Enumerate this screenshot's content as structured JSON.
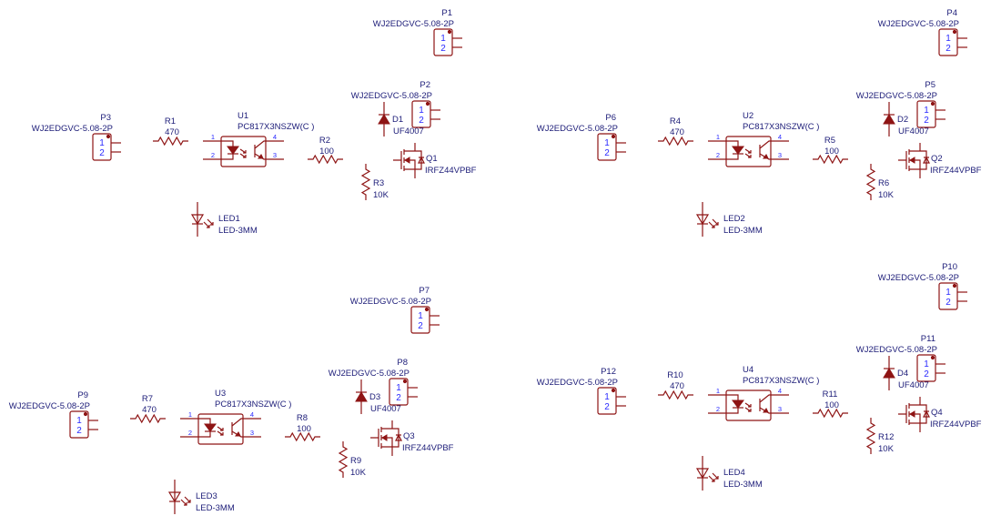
{
  "colors": {
    "wire": "#8e1414",
    "label": "#1c1c78",
    "pin_number": "#2a2aff",
    "background": "#ffffff"
  },
  "blocks": [
    {
      "connectors": [
        {
          "ref": "P1",
          "part": "WJ2EDGVC-5.08-2P",
          "pins": [
            "1",
            "2"
          ]
        },
        {
          "ref": "P2",
          "part": "WJ2EDGVC-5.08-2P",
          "pins": [
            "1",
            "2"
          ]
        },
        {
          "ref": "P3",
          "part": "WJ2EDGVC-5.08-2P",
          "pins": [
            "1",
            "2"
          ]
        }
      ],
      "r_in": {
        "ref": "R1",
        "value": "470"
      },
      "opto": {
        "ref": "U1",
        "part": "PC817X3NSZW(C )",
        "pins": [
          "1",
          "2",
          "4",
          "3"
        ]
      },
      "r_gate": {
        "ref": "R2",
        "value": "100"
      },
      "diode": {
        "ref": "D1",
        "part": "UF4007"
      },
      "mosfet": {
        "ref": "Q1",
        "part": "IRFZ44VPBF"
      },
      "r_pull": {
        "ref": "R3",
        "value": "10K"
      },
      "led": {
        "ref": "LED1",
        "part": "LED-3MM"
      }
    },
    {
      "connectors": [
        {
          "ref": "P4",
          "part": "WJ2EDGVC-5.08-2P",
          "pins": [
            "1",
            "2"
          ]
        },
        {
          "ref": "P5",
          "part": "WJ2EDGVC-5.08-2P",
          "pins": [
            "1",
            "2"
          ]
        },
        {
          "ref": "P6",
          "part": "WJ2EDGVC-5.08-2P",
          "pins": [
            "1",
            "2"
          ]
        }
      ],
      "r_in": {
        "ref": "R4",
        "value": "470"
      },
      "opto": {
        "ref": "U2",
        "part": "PC817X3NSZW(C )",
        "pins": [
          "1",
          "2",
          "4",
          "3"
        ]
      },
      "r_gate": {
        "ref": "R5",
        "value": "100"
      },
      "diode": {
        "ref": "D2",
        "part": "UF4007"
      },
      "mosfet": {
        "ref": "Q2",
        "part": "IRFZ44VPBF"
      },
      "r_pull": {
        "ref": "R6",
        "value": "10K"
      },
      "led": {
        "ref": "LED2",
        "part": "LED-3MM"
      }
    },
    {
      "connectors": [
        {
          "ref": "P7",
          "part": "WJ2EDGVC-5.08-2P",
          "pins": [
            "1",
            "2"
          ]
        },
        {
          "ref": "P8",
          "part": "WJ2EDGVC-5.08-2P",
          "pins": [
            "1",
            "2"
          ]
        },
        {
          "ref": "P9",
          "part": "WJ2EDGVC-5.08-2P",
          "pins": [
            "1",
            "2"
          ]
        }
      ],
      "r_in": {
        "ref": "R7",
        "value": "470"
      },
      "opto": {
        "ref": "U3",
        "part": "PC817X3NSZW(C )",
        "pins": [
          "1",
          "2",
          "4",
          "3"
        ]
      },
      "r_gate": {
        "ref": "R8",
        "value": "100"
      },
      "diode": {
        "ref": "D3",
        "part": "UF4007"
      },
      "mosfet": {
        "ref": "Q3",
        "part": "IRFZ44VPBF"
      },
      "r_pull": {
        "ref": "R9",
        "value": "10K"
      },
      "led": {
        "ref": "LED3",
        "part": "LED-3MM"
      }
    },
    {
      "connectors": [
        {
          "ref": "P10",
          "part": "WJ2EDGVC-5.08-2P",
          "pins": [
            "1",
            "2"
          ]
        },
        {
          "ref": "P11",
          "part": "WJ2EDGVC-5.08-2P",
          "pins": [
            "1",
            "2"
          ]
        },
        {
          "ref": "P12",
          "part": "WJ2EDGVC-5.08-2P",
          "pins": [
            "1",
            "2"
          ]
        }
      ],
      "r_in": {
        "ref": "R10",
        "value": "470"
      },
      "opto": {
        "ref": "U4",
        "part": "PC817X3NSZW(C )",
        "pins": [
          "1",
          "2",
          "4",
          "3"
        ]
      },
      "r_gate": {
        "ref": "R11",
        "value": "100"
      },
      "diode": {
        "ref": "D4",
        "part": "UF4007"
      },
      "mosfet": {
        "ref": "Q4",
        "part": "IRFZ44VPBF"
      },
      "r_pull": {
        "ref": "R12",
        "value": "10K"
      },
      "led": {
        "ref": "LED4",
        "part": "LED-3MM"
      }
    }
  ]
}
